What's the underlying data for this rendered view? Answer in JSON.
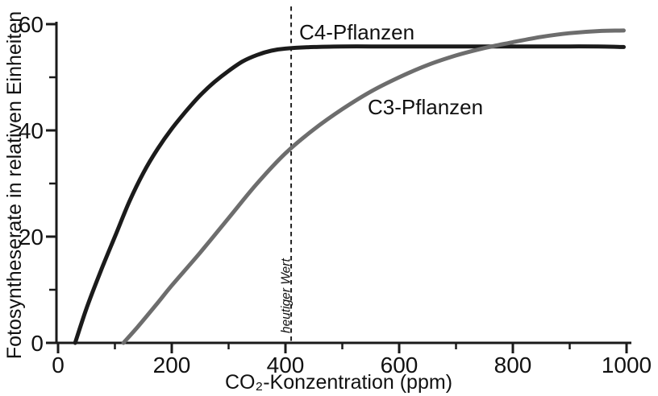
{
  "chart_data": {
    "type": "line",
    "title": "",
    "xlabel": "CO₂-Konzentration (ppm)",
    "ylabel": "Fotosyntheserate in relativen Einheiten",
    "xlim": [
      0,
      1000
    ],
    "ylim": [
      0,
      60
    ],
    "x_major_ticks": [
      0,
      200,
      400,
      600,
      800,
      1000
    ],
    "x_minor_ticks": [
      100,
      300,
      500,
      700,
      900
    ],
    "y_major_ticks": [
      0,
      20,
      40,
      60
    ],
    "y_minor_ticks": [
      10,
      30,
      50
    ],
    "grid": false,
    "legend_position": "inline-labels-on-curves",
    "axis_color": "#1a1a1a",
    "series": [
      {
        "name": "C4-Pflanzen",
        "color": "#1b1b1b",
        "line_width": 5,
        "x": [
          30,
          50,
          75,
          100,
          125,
          150,
          175,
          200,
          225,
          250,
          275,
          300,
          325,
          350,
          375,
          400,
          450,
          500,
          550,
          600,
          650,
          700,
          750,
          800,
          850,
          900,
          950,
          995
        ],
        "y": [
          0,
          6.5,
          13.5,
          20,
          26.5,
          32,
          36.5,
          40.3,
          43.6,
          46.6,
          49.1,
          51.2,
          53,
          54.2,
          55,
          55.4,
          55.7,
          55.8,
          55.8,
          55.8,
          55.8,
          55.8,
          55.8,
          55.8,
          55.8,
          55.8,
          55.8,
          55.7
        ],
        "saturation_value": 55.8,
        "x_intercept_ppm": 30
      },
      {
        "name": "C3-Pflanzen",
        "color": "#6d6d6d",
        "line_width": 5,
        "x": [
          115,
          140,
          175,
          200,
          250,
          300,
          350,
          400,
          450,
          500,
          550,
          600,
          650,
          700,
          750,
          800,
          850,
          900,
          950,
          995
        ],
        "y": [
          0,
          3,
          7.5,
          10.8,
          17,
          23.5,
          30,
          35.7,
          40.2,
          44,
          47.3,
          50,
          52.3,
          54.1,
          55.5,
          56.6,
          57.6,
          58.3,
          58.7,
          58.8
        ],
        "end_value": 58.8,
        "x_intercept_ppm": 115
      }
    ],
    "series_crossing_ppm": 770,
    "annotations": [
      {
        "type": "vline",
        "x": 410,
        "style": "dashed",
        "color": "#222222",
        "label": "heutiger Wert",
        "label_style": "italic",
        "value_at_c3_curve": 37.5,
        "value_at_c4_curve": 55.7
      }
    ]
  }
}
